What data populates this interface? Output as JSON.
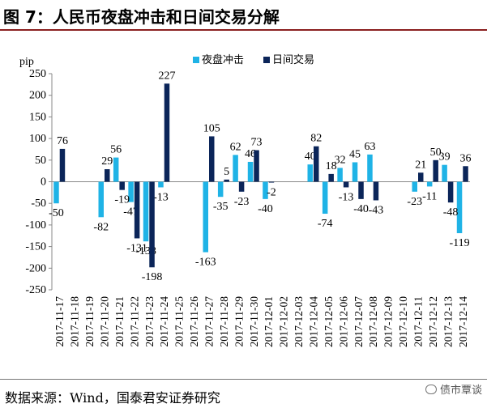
{
  "title": "图 7：人民币夜盘冲击和日间交易分解",
  "source": "数据来源：Wind，国泰君安证券研究",
  "watermark": "债市覃谈",
  "colors": {
    "night": "#1fb3e6",
    "day": "#0b2559"
  },
  "chart_data": {
    "type": "bar",
    "ylabel": "pip",
    "ylim": [
      -250,
      250
    ],
    "yticks": [
      -250,
      -200,
      -150,
      -100,
      -50,
      0,
      50,
      100,
      150,
      200,
      250
    ],
    "legend_position": "top",
    "categories": [
      "2017-11-17",
      "2017-11-18",
      "2017-11-19",
      "2017-11-20",
      "2017-11-21",
      "2017-11-22",
      "2017-11-23",
      "2017-11-24",
      "2017-11-25",
      "2017-11-26",
      "2017-11-27",
      "2017-11-28",
      "2017-11-29",
      "2017-11-30",
      "2017-12-01",
      "2017-12-02",
      "2017-12-03",
      "2017-12-04",
      "2017-12-05",
      "2017-12-06",
      "2017-12-07",
      "2017-12-08",
      "2017-12-09",
      "2017-12-10",
      "2017-12-11",
      "2017-12-12",
      "2017-12-13",
      "2017-12-14"
    ],
    "series": [
      {
        "name": "夜盘冲击",
        "values": [
          -50,
          null,
          null,
          -82,
          56,
          -47,
          -138,
          -13,
          null,
          null,
          -163,
          -35,
          62,
          46,
          -40,
          null,
          null,
          40,
          -74,
          32,
          45,
          63,
          null,
          null,
          -23,
          -11,
          39,
          -119
        ]
      },
      {
        "name": "日间交易",
        "values": [
          76,
          null,
          null,
          29,
          -19,
          -131,
          -198,
          227,
          null,
          null,
          105,
          5,
          -23,
          73,
          -2,
          null,
          null,
          82,
          18,
          -13,
          -40,
          -43,
          null,
          null,
          21,
          50,
          -48,
          36
        ]
      }
    ]
  }
}
